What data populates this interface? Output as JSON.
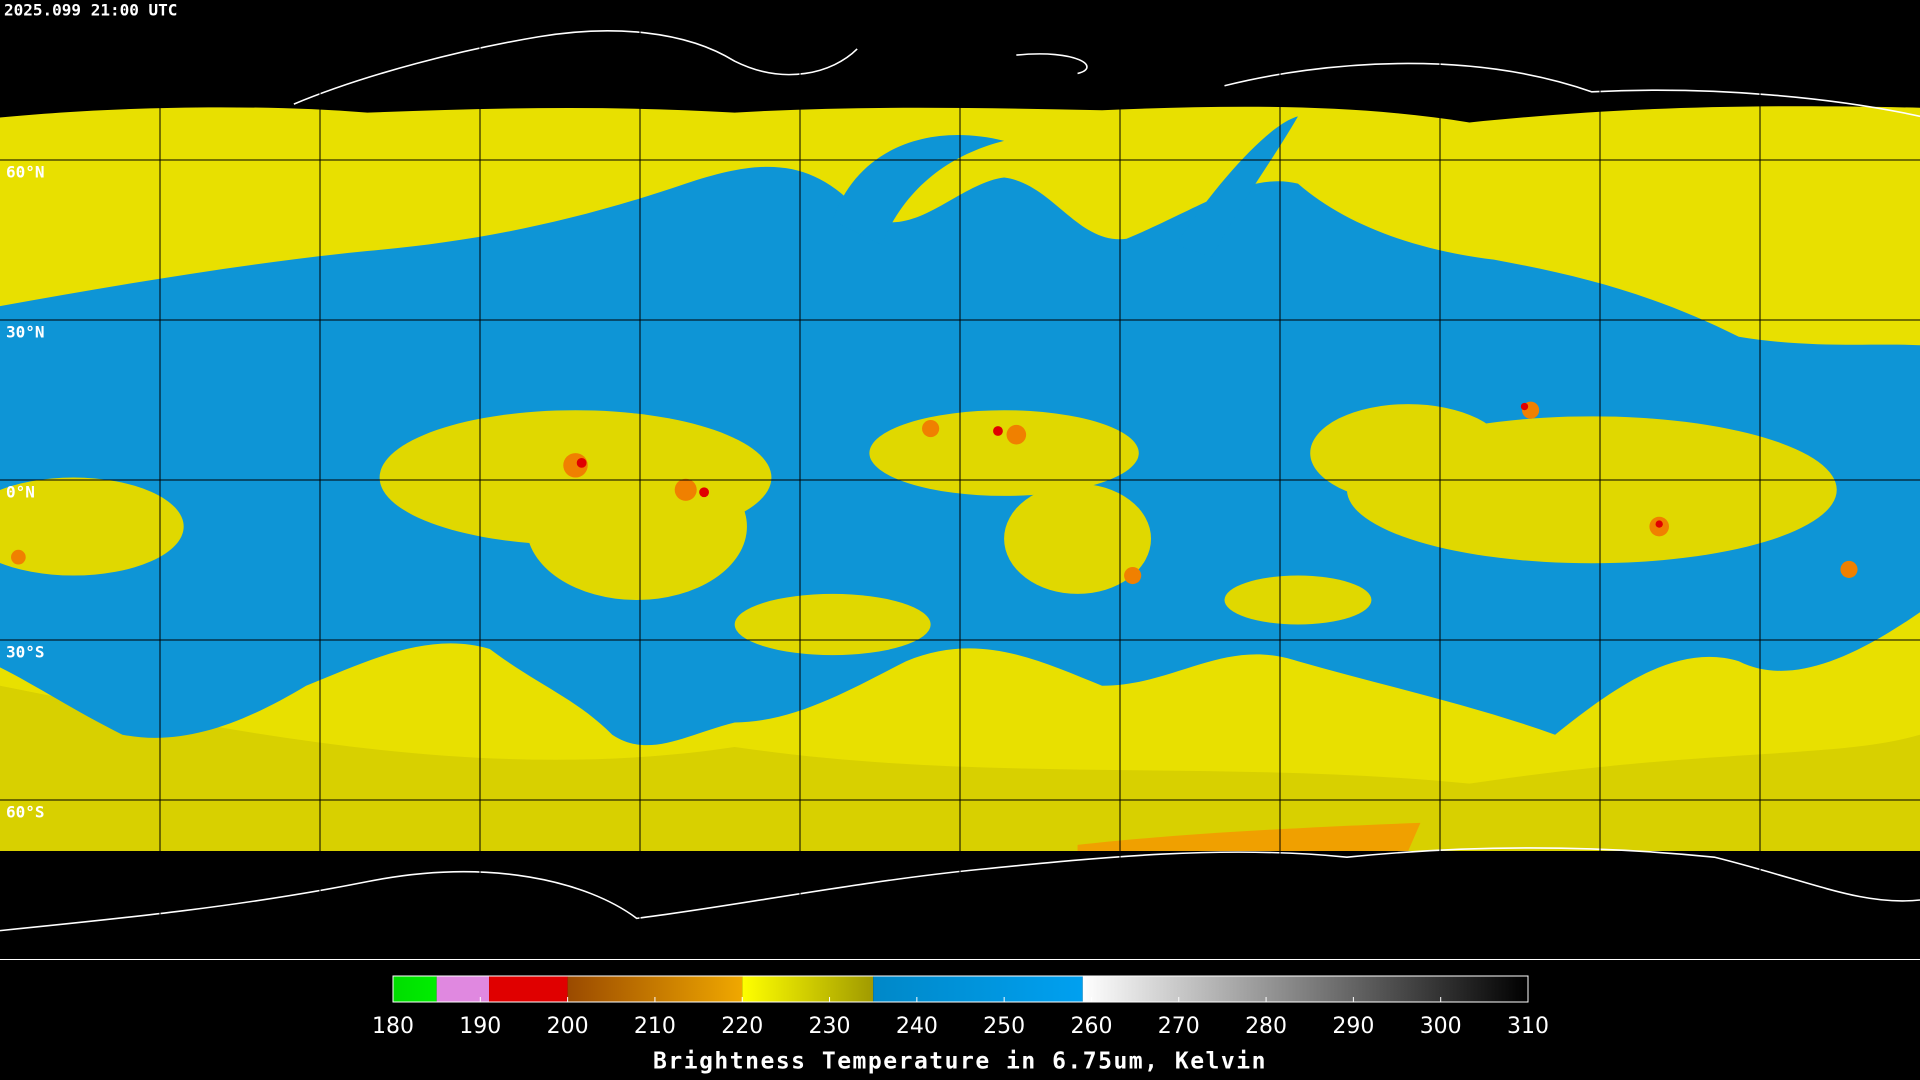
{
  "title": "2025.099 21:00 UTC",
  "grid": {
    "color": "#000000",
    "latitudes": [
      {
        "value": 60,
        "label": "60°N"
      },
      {
        "value": 30,
        "label": "30°N"
      },
      {
        "value": 0,
        "label": "0°N"
      },
      {
        "value": -30,
        "label": "30°S"
      },
      {
        "value": -60,
        "label": "60°S"
      }
    ]
  },
  "colorbar": {
    "label": "Brightness Temperature in 6.75um, Kelvin",
    "lim": [
      180,
      310
    ],
    "ticks": [
      180,
      190,
      200,
      210,
      220,
      230,
      240,
      250,
      260,
      270,
      280,
      290,
      300,
      310
    ],
    "segments": [
      {
        "from": 180,
        "to": 185,
        "colors": [
          "#00dd00",
          "#00ee00"
        ]
      },
      {
        "from": 185,
        "to": 191,
        "colors": [
          "#e088e0",
          "#e088e0"
        ]
      },
      {
        "from": 191,
        "to": 200,
        "colors": [
          "#e00000",
          "#e00000"
        ]
      },
      {
        "from": 200,
        "to": 220,
        "colors": [
          "#9a4a00",
          "#f0a800"
        ]
      },
      {
        "from": 220,
        "to": 235,
        "colors": [
          "#ffff00",
          "#a09a00"
        ]
      },
      {
        "from": 235,
        "to": 259,
        "colors": [
          "#0088c8",
          "#00a0f0"
        ]
      },
      {
        "from": 259,
        "to": 310,
        "colors": [
          "#ffffff",
          "#000000"
        ]
      }
    ]
  }
}
